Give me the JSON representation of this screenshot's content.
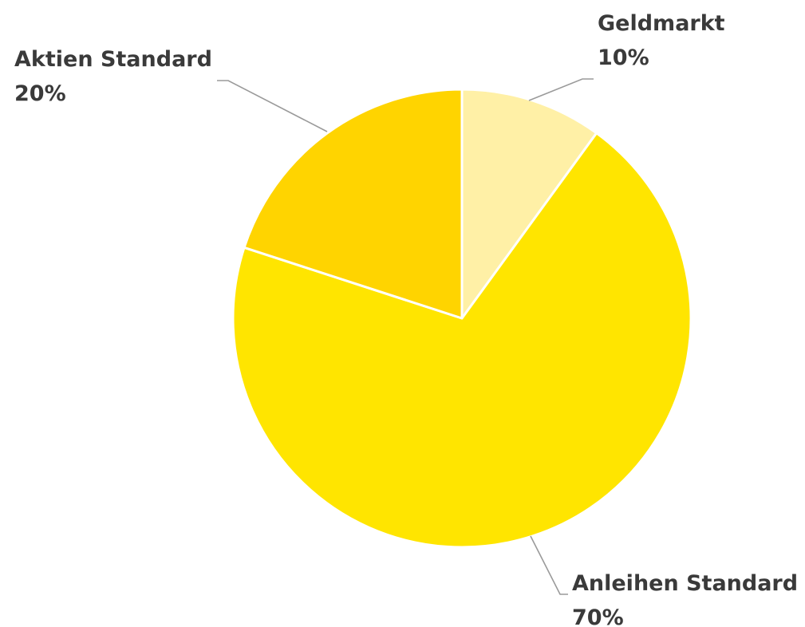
{
  "chart_data": {
    "type": "pie",
    "title": "",
    "slices": [
      {
        "label": "Geldmarkt",
        "value": 10,
        "value_label": "10%",
        "color": "#FFF0A6"
      },
      {
        "label": "Anleihen Standard",
        "value": 70,
        "value_label": "70%",
        "color": "#FFE500"
      },
      {
        "label": "Aktien Standard",
        "value": 20,
        "value_label": "20%",
        "color": "#FFD400"
      }
    ],
    "start_angle": "12 o'clock",
    "direction": "clockwise",
    "legend": "none",
    "labels": "outside with leader lines"
  }
}
